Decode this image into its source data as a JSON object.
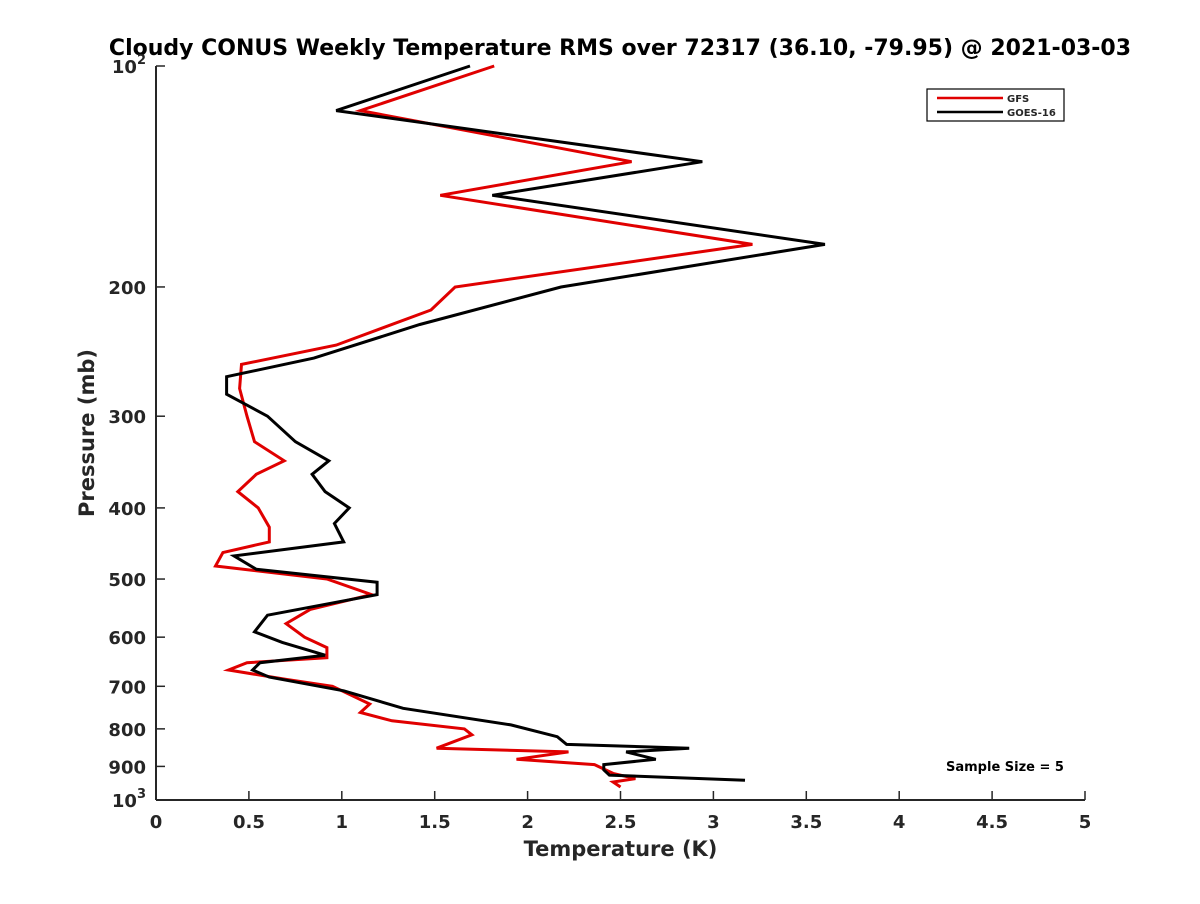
{
  "chart_data": {
    "type": "line",
    "title": "Cloudy CONUS Weekly Temperature RMS over 72317 (36.10, -79.95) @ 2021-03-03",
    "xlabel": "Temperature (K)",
    "ylabel": "Pressure (mb)",
    "xlim": [
      0,
      5
    ],
    "ylim": [
      100,
      1000
    ],
    "y_scale": "log",
    "y_reversed": true,
    "grid": false,
    "legend_position": "top-right",
    "x_ticks": [
      0,
      0.5,
      1,
      1.5,
      2,
      2.5,
      3,
      3.5,
      4,
      4.5,
      5
    ],
    "x_tick_labels": [
      "0",
      "0.5",
      "1",
      "1.5",
      "2",
      "2.5",
      "3",
      "3.5",
      "4",
      "4.5",
      "5"
    ],
    "y_ticks": [
      100,
      200,
      300,
      400,
      500,
      600,
      700,
      800,
      900,
      1000
    ],
    "y_tick_labels": [
      {
        "base": "10",
        "exp": "2"
      },
      {
        "base": "200",
        "exp": ""
      },
      {
        "base": "300",
        "exp": ""
      },
      {
        "base": "400",
        "exp": ""
      },
      {
        "base": "500",
        "exp": ""
      },
      {
        "base": "600",
        "exp": ""
      },
      {
        "base": "700",
        "exp": ""
      },
      {
        "base": "800",
        "exp": ""
      },
      {
        "base": "900",
        "exp": ""
      },
      {
        "base": "10",
        "exp": "3"
      }
    ],
    "annotation": "Sample Size = 5",
    "series": [
      {
        "name": "GFS",
        "color": "#e00000",
        "points": [
          [
            1.82,
            100
          ],
          [
            1.1,
            115
          ],
          [
            2.56,
            135
          ],
          [
            1.53,
            150
          ],
          [
            3.21,
            175
          ],
          [
            1.61,
            200
          ],
          [
            1.48,
            215
          ],
          [
            0.97,
            240
          ],
          [
            0.46,
            255
          ],
          [
            0.45,
            275
          ],
          [
            0.49,
            300
          ],
          [
            0.53,
            325
          ],
          [
            0.69,
            345
          ],
          [
            0.54,
            360
          ],
          [
            0.44,
            380
          ],
          [
            0.55,
            400
          ],
          [
            0.61,
            425
          ],
          [
            0.61,
            445
          ],
          [
            0.36,
            460
          ],
          [
            0.32,
            480
          ],
          [
            0.92,
            500
          ],
          [
            1.16,
            525
          ],
          [
            0.83,
            550
          ],
          [
            0.7,
            575
          ],
          [
            0.8,
            600
          ],
          [
            0.92,
            620
          ],
          [
            0.92,
            640
          ],
          [
            0.49,
            650
          ],
          [
            0.39,
            665
          ],
          [
            0.7,
            685
          ],
          [
            0.95,
            700
          ],
          [
            1.15,
            740
          ],
          [
            1.1,
            760
          ],
          [
            1.27,
            780
          ],
          [
            1.66,
            800
          ],
          [
            1.7,
            815
          ],
          [
            1.51,
            850
          ],
          [
            2.22,
            860
          ],
          [
            1.94,
            880
          ],
          [
            2.36,
            895
          ],
          [
            2.46,
            920
          ],
          [
            2.58,
            935
          ],
          [
            2.46,
            945
          ],
          [
            2.5,
            960
          ]
        ]
      },
      {
        "name": "GOES-16",
        "color": "#000000",
        "points": [
          [
            1.69,
            100
          ],
          [
            0.97,
            115
          ],
          [
            2.94,
            135
          ],
          [
            1.81,
            150
          ],
          [
            3.6,
            175
          ],
          [
            2.18,
            200
          ],
          [
            1.42,
            225
          ],
          [
            0.85,
            250
          ],
          [
            0.38,
            265
          ],
          [
            0.38,
            280
          ],
          [
            0.6,
            300
          ],
          [
            0.75,
            325
          ],
          [
            0.93,
            345
          ],
          [
            0.84,
            360
          ],
          [
            0.91,
            380
          ],
          [
            1.04,
            400
          ],
          [
            0.96,
            420
          ],
          [
            1.01,
            445
          ],
          [
            0.42,
            465
          ],
          [
            0.54,
            485
          ],
          [
            1.19,
            505
          ],
          [
            1.19,
            525
          ],
          [
            0.6,
            560
          ],
          [
            0.53,
            590
          ],
          [
            0.68,
            610
          ],
          [
            0.91,
            635
          ],
          [
            0.56,
            650
          ],
          [
            0.52,
            665
          ],
          [
            0.61,
            680
          ],
          [
            1.01,
            710
          ],
          [
            1.33,
            750
          ],
          [
            1.91,
            790
          ],
          [
            2.16,
            820
          ],
          [
            2.21,
            840
          ],
          [
            2.87,
            850
          ],
          [
            2.53,
            860
          ],
          [
            2.69,
            880
          ],
          [
            2.41,
            895
          ],
          [
            2.41,
            910
          ],
          [
            2.44,
            925
          ],
          [
            3.17,
            940
          ]
        ]
      }
    ]
  }
}
